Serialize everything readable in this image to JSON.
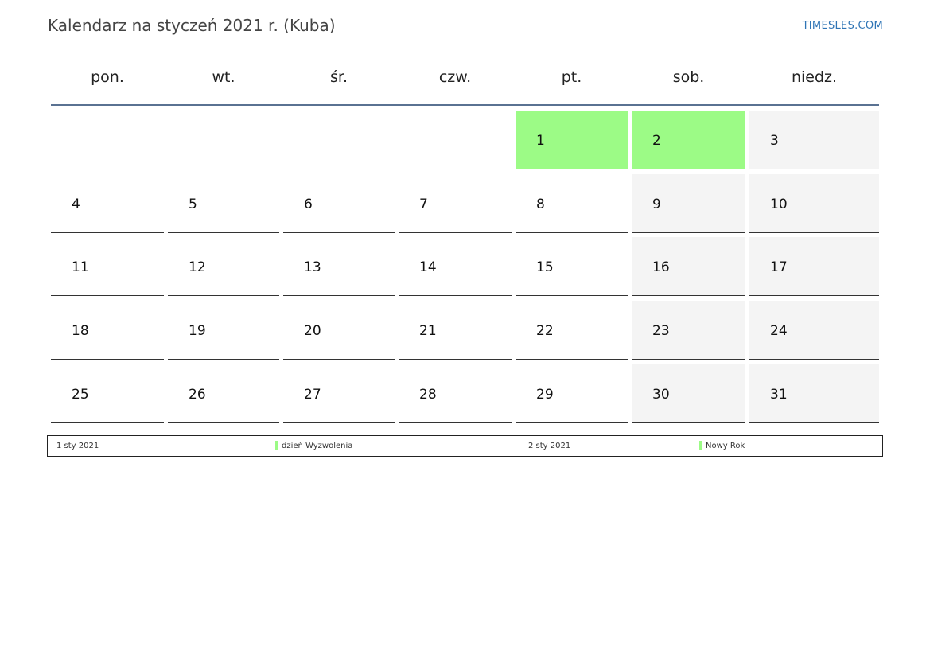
{
  "page": {
    "title": "Kalendarz na styczeń 2021 r. (Kuba)",
    "brand": "TIMESLES.COM"
  },
  "colors": {
    "holiday": "#9cfb86",
    "weekend": "#f4f4f4",
    "header_rule": "#5a7292",
    "brand": "#2e74b5"
  },
  "calendar": {
    "weekdays": [
      "pon.",
      "wt.",
      "śr.",
      "czw.",
      "pt.",
      "sob.",
      "niedz."
    ],
    "weeks": [
      [
        null,
        null,
        null,
        null,
        1,
        2,
        3
      ],
      [
        4,
        5,
        6,
        7,
        8,
        9,
        10
      ],
      [
        11,
        12,
        13,
        14,
        15,
        16,
        17
      ],
      [
        18,
        19,
        20,
        21,
        22,
        23,
        24
      ],
      [
        25,
        26,
        27,
        28,
        29,
        30,
        31
      ]
    ],
    "holidays": [
      1,
      2
    ]
  },
  "legend": {
    "entries": [
      {
        "date": "1 sty 2021",
        "name": "dzień Wyzwolenia"
      },
      {
        "date": "2 sty 2021",
        "name": "Nowy Rok"
      }
    ]
  }
}
